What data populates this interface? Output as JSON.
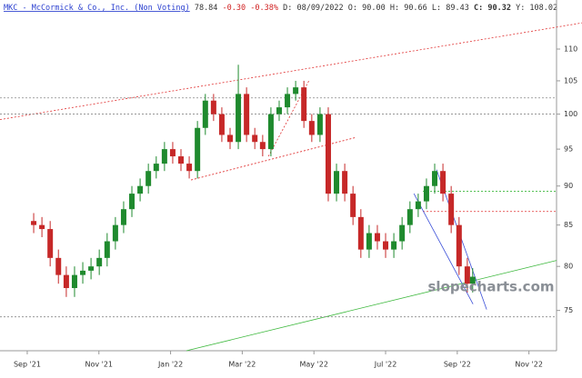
{
  "header": {
    "symbol": "MKC - McCormick & Co., Inc. (Non Voting)",
    "last": "78.84",
    "change": "-0.30",
    "change_pct": "-0.38%",
    "date": "D: 08/09/2022",
    "open": "O: 90.00",
    "high": "H: 90.66",
    "low": "L: 89.43",
    "close": "C: 90.32",
    "y": "Y: 108.02"
  },
  "chart_data": {
    "type": "candlestick",
    "watermark": "slopecharts.com",
    "log_scale": true,
    "up_color": "#1f8a2e",
    "down_color": "#c62828",
    "x": [
      0.18,
      0.41,
      0.64,
      0.87,
      1.09,
      1.32,
      1.55,
      1.78,
      2.01,
      2.23,
      2.46,
      2.69,
      2.92,
      3.15,
      3.38,
      3.6,
      3.83,
      4.06,
      4.29,
      4.52,
      4.75,
      4.97,
      5.2,
      5.43,
      5.66,
      5.89,
      6.12,
      6.35,
      6.57,
      6.8,
      7.03,
      7.26,
      7.49,
      7.72,
      7.94,
      8.17,
      8.4,
      8.63,
      8.86,
      9.09,
      9.31,
      9.54,
      9.77,
      10.0,
      10.23,
      10.46,
      10.68,
      10.91,
      11.14,
      11.37,
      11.6,
      11.83,
      12.05,
      12.28,
      12.43
    ],
    "open": [
      85.5,
      85,
      84.5,
      81,
      79,
      77.5,
      79,
      79.5,
      80,
      81,
      83,
      85,
      87,
      89,
      90,
      92,
      93,
      95,
      94,
      93,
      92,
      98,
      102,
      100,
      97,
      96,
      103,
      97,
      96,
      95,
      100,
      101,
      103,
      104,
      99,
      97,
      100,
      89,
      92,
      89,
      86,
      82,
      84,
      83,
      82,
      83,
      85,
      87,
      88,
      90,
      92,
      89,
      85,
      80,
      78
    ],
    "high": [
      86.5,
      86,
      85.5,
      82,
      80,
      80,
      80.5,
      81,
      82,
      84,
      86,
      88,
      90,
      91,
      93,
      94,
      96,
      96,
      95,
      94,
      99,
      103,
      103,
      101,
      98,
      107.5,
      104,
      98,
      97,
      101,
      102,
      104,
      105,
      105,
      100,
      101,
      101,
      93,
      93,
      90,
      87,
      85,
      85,
      84,
      84,
      86,
      88,
      89,
      91,
      93,
      93,
      90,
      86,
      81,
      79.8
    ],
    "low": [
      84,
      83.5,
      80,
      78,
      76.5,
      76.5,
      78,
      78.5,
      79,
      80,
      82,
      84,
      86,
      88,
      89,
      91,
      92,
      93,
      92,
      91,
      91,
      97,
      99,
      96,
      95,
      95,
      96,
      95,
      94,
      94,
      99,
      100,
      102,
      98,
      96,
      96,
      88,
      88,
      88,
      85,
      81,
      81,
      82,
      81,
      81,
      82,
      84,
      86,
      87,
      89,
      88,
      84,
      79,
      77,
      77
    ],
    "close": [
      85,
      84.5,
      81,
      79,
      77.5,
      79,
      79.5,
      80,
      81,
      83,
      85,
      87,
      89,
      90,
      92,
      93,
      95,
      94,
      93,
      92,
      98,
      102,
      100,
      97,
      96,
      103,
      97,
      96,
      95,
      100,
      101,
      103,
      104,
      99,
      97,
      100,
      89,
      92,
      89,
      86,
      82,
      84,
      83,
      82,
      83,
      85,
      87,
      88,
      90,
      92,
      89,
      85,
      80,
      78,
      78.8
    ],
    "xlim": [
      -0.76,
      14.77
    ],
    "ylim": [
      70.7,
      118.2
    ],
    "xticks": [
      {
        "value": 0,
        "label": "Sep '21"
      },
      {
        "value": 2,
        "label": "Nov '21"
      },
      {
        "value": 4,
        "label": "Jan '22"
      },
      {
        "value": 6,
        "label": "Mar '22"
      },
      {
        "value": 8,
        "label": "May '22"
      },
      {
        "value": 10,
        "label": "Jul '22"
      },
      {
        "value": 12,
        "label": "Sep '22"
      },
      {
        "value": 14,
        "label": "Nov '22"
      }
    ],
    "yticks": [
      75,
      80,
      85,
      90,
      95,
      100,
      105,
      110
    ],
    "trendlines": [
      {
        "x": [
          -0.76,
          15.48
        ],
        "y": [
          99.2,
          114.3
        ],
        "color": "#e03030",
        "dash": true
      },
      {
        "x": [
          4.44,
          14.77
        ],
        "y": [
          70.7,
          80.7
        ],
        "color": "#3cb83c",
        "dash": false
      },
      {
        "x": [
          4.57,
          9.14
        ],
        "y": [
          90.8,
          96.6
        ],
        "color": "#e03030",
        "dash": true
      },
      {
        "x": [
          6.73,
          7.87
        ],
        "y": [
          94.0,
          105.1
        ],
        "color": "#e03030",
        "dash": true
      },
      {
        "x": [
          -0.76,
          14.77
        ],
        "y": [
          102.4,
          102.4
        ],
        "color": "#888888",
        "dash": true
      },
      {
        "x": [
          -0.76,
          14.77
        ],
        "y": [
          100,
          100
        ],
        "color": "#888888",
        "dash": true
      },
      {
        "x": [
          -0.76,
          14.77
        ],
        "y": [
          74.3,
          74.3
        ],
        "color": "#888888",
        "dash": true
      },
      {
        "x": [
          11.04,
          14.77
        ],
        "y": [
          89.3,
          89.3
        ],
        "color": "#3cb83c",
        "dash": true
      },
      {
        "x": [
          11.04,
          14.77
        ],
        "y": [
          86.7,
          86.7
        ],
        "color": "#e03030",
        "dash": true
      },
      {
        "x": [
          10.79,
          12.44
        ],
        "y": [
          89.0,
          75.7
        ],
        "color": "#3b4fd8",
        "dash": false
      },
      {
        "x": [
          11.42,
          12.82
        ],
        "y": [
          92.2,
          75.1
        ],
        "color": "#3b4fd8",
        "dash": false
      }
    ]
  }
}
